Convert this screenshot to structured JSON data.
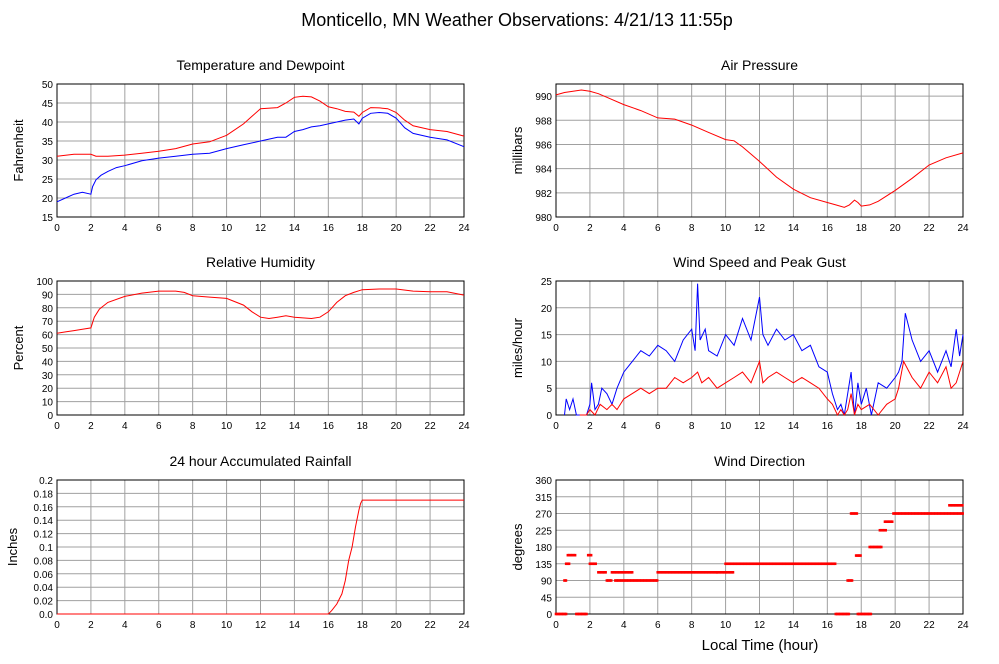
{
  "page_title": "Monticello, MN Weather Observations: 4/21/13 11:55p",
  "shared_x_label": "Local Time (hour)",
  "colors": {
    "red": "#ff0000",
    "blue": "#0000ff",
    "grid": "#a0a0a0",
    "axis": "#000000"
  },
  "chart_data": [
    {
      "id": "temp",
      "type": "line",
      "title": "Temperature and Dewpoint",
      "ylabel": "Fahrenheit",
      "xlabel": "",
      "xlim": [
        0,
        24
      ],
      "ylim": [
        15,
        50
      ],
      "xticks": [
        0,
        2,
        4,
        6,
        8,
        10,
        12,
        14,
        16,
        18,
        20,
        22,
        24
      ],
      "yticks": [
        15,
        20,
        25,
        30,
        35,
        40,
        45,
        50
      ],
      "grid": true,
      "series": [
        {
          "color": "#ff0000",
          "x": [
            0,
            1,
            2,
            2.3,
            3,
            4,
            5,
            6,
            7,
            8,
            9,
            10,
            11,
            11.5,
            12,
            13,
            13.5,
            14,
            14.5,
            15,
            15.5,
            16,
            16.5,
            17,
            17.5,
            17.8,
            18,
            18.5,
            19,
            19.5,
            20,
            20.5,
            21,
            22,
            23,
            24
          ],
          "y": [
            31,
            31.5,
            31.5,
            31,
            31,
            31.3,
            31.8,
            32.3,
            33,
            34.2,
            34.8,
            36.5,
            39.5,
            41.5,
            43.5,
            43.8,
            45,
            46.5,
            46.8,
            46.6,
            45.5,
            44,
            43.5,
            42.8,
            42.6,
            41.5,
            42.5,
            43.8,
            43.7,
            43.5,
            42.5,
            40.5,
            39,
            38,
            37.5,
            36.3
          ]
        },
        {
          "color": "#0000ff",
          "x": [
            0,
            0.5,
            1,
            1.5,
            2,
            2.1,
            2.3,
            2.6,
            3,
            3.5,
            4,
            5,
            6,
            7,
            8,
            9,
            10,
            11,
            12,
            12.5,
            13,
            13.5,
            14,
            14.5,
            15,
            15.5,
            16,
            16.5,
            17,
            17.5,
            17.8,
            18,
            18.5,
            19,
            19.5,
            20,
            20.5,
            21,
            22,
            23,
            24
          ],
          "y": [
            19,
            20,
            21,
            21.5,
            21,
            23,
            24.8,
            26,
            27,
            28,
            28.5,
            29.8,
            30.5,
            31,
            31.5,
            31.8,
            33,
            34,
            35,
            35.5,
            36,
            36,
            37.5,
            38,
            38.7,
            39,
            39.5,
            40,
            40.5,
            40.8,
            39.5,
            41,
            42.3,
            42.5,
            42.3,
            41,
            38.5,
            37,
            36,
            35.3,
            33.5
          ]
        }
      ]
    },
    {
      "id": "pressure",
      "type": "line",
      "title": "Air Pressure",
      "ylabel": "millibars",
      "xlabel": "",
      "xlim": [
        0,
        24
      ],
      "ylim": [
        980,
        991
      ],
      "xticks": [
        0,
        2,
        4,
        6,
        8,
        10,
        12,
        14,
        16,
        18,
        20,
        22,
        24
      ],
      "yticks": [
        980,
        982,
        984,
        986,
        988,
        990
      ],
      "grid": true,
      "series": [
        {
          "color": "#ff0000",
          "x": [
            0,
            0.5,
            1,
            1.5,
            2,
            2.5,
            3,
            4,
            5,
            6,
            7,
            8,
            9,
            10,
            10.5,
            11,
            12,
            13,
            14,
            15,
            16,
            16.5,
            17,
            17.3,
            17.6,
            17.8,
            18,
            18.5,
            19,
            20,
            21,
            22,
            23,
            24
          ],
          "y": [
            990.1,
            990.3,
            990.4,
            990.5,
            990.4,
            990.2,
            989.9,
            989.3,
            988.8,
            988.2,
            988.1,
            987.6,
            987.0,
            986.4,
            986.3,
            985.8,
            984.6,
            983.3,
            982.3,
            981.6,
            981.2,
            981.0,
            980.8,
            981.0,
            981.4,
            981.2,
            980.9,
            981.0,
            981.3,
            982.2,
            983.2,
            984.3,
            984.9,
            985.3
          ]
        }
      ]
    },
    {
      "id": "humidity",
      "type": "line",
      "title": "Relative Humidity",
      "ylabel": "Percent",
      "xlabel": "",
      "xlim": [
        0,
        24
      ],
      "ylim": [
        0,
        100
      ],
      "xticks": [
        0,
        2,
        4,
        6,
        8,
        10,
        12,
        14,
        16,
        18,
        20,
        22,
        24
      ],
      "yticks": [
        0,
        10,
        20,
        30,
        40,
        50,
        60,
        70,
        80,
        90,
        100
      ],
      "grid": true,
      "series": [
        {
          "color": "#ff0000",
          "x": [
            0,
            0.5,
            1,
            1.5,
            2,
            2.2,
            2.5,
            3,
            4,
            5,
            6,
            7,
            7.5,
            8,
            9,
            10,
            11,
            11.5,
            12,
            12.5,
            13,
            13.5,
            14,
            14.5,
            15,
            15.5,
            16,
            16.5,
            17,
            17.5,
            18,
            19,
            20,
            21,
            22,
            23,
            24
          ],
          "y": [
            61,
            62,
            63,
            64,
            65,
            73,
            79,
            84,
            88.5,
            91,
            92.5,
            92.5,
            91.5,
            89,
            88,
            87,
            82,
            77,
            73,
            72,
            73,
            74,
            73,
            72.5,
            72,
            73,
            77,
            84,
            89,
            91.5,
            93.5,
            94,
            94,
            92.5,
            92,
            92,
            89.5
          ]
        }
      ]
    },
    {
      "id": "wind",
      "type": "line",
      "title": "Wind Speed and Peak Gust",
      "ylabel": "miles/hour",
      "xlabel": "",
      "xlim": [
        0,
        24
      ],
      "ylim": [
        0,
        25
      ],
      "xticks": [
        0,
        2,
        4,
        6,
        8,
        10,
        12,
        14,
        16,
        18,
        20,
        22,
        24
      ],
      "yticks": [
        0,
        5,
        10,
        15,
        20,
        25
      ],
      "grid": true,
      "series": [
        {
          "color": "#0000ff",
          "x": [
            0.5,
            0.6,
            0.8,
            1.0,
            1.2,
            1.4,
            1.6,
            1.8,
            2.0,
            2.1,
            2.3,
            2.5,
            2.7,
            3,
            3.3,
            3.6,
            4,
            4.5,
            5,
            5.5,
            6,
            6.5,
            7,
            7.5,
            8,
            8.2,
            8.35,
            8.5,
            8.8,
            9,
            9.5,
            10,
            10.5,
            11,
            11.5,
            12,
            12.2,
            12.5,
            13,
            13.5,
            14,
            14.5,
            15,
            15.5,
            16,
            16.3,
            16.6,
            16.8,
            17,
            17.2,
            17.4,
            17.6,
            17.8,
            18,
            18.3,
            18.6,
            19,
            19.5,
            20,
            20.2,
            20.4,
            20.6,
            21,
            21.5,
            22,
            22.5,
            23,
            23.3,
            23.6,
            23.8,
            24
          ],
          "y": [
            0,
            3,
            1,
            3,
            0,
            0,
            0,
            0,
            2,
            6,
            1,
            2,
            5,
            4,
            2,
            5,
            8,
            10,
            12,
            11,
            13,
            12,
            10,
            14,
            16,
            12,
            24.5,
            14,
            16,
            12,
            11,
            15,
            13,
            18,
            14,
            22,
            15,
            13,
            16,
            14,
            15,
            12,
            13,
            9,
            8,
            4,
            1,
            2,
            0,
            4,
            8,
            0,
            6,
            2,
            5,
            0,
            6,
            5,
            7,
            8,
            10,
            19,
            14,
            10,
            12,
            8,
            12,
            9,
            16,
            11,
            15
          ]
        },
        {
          "color": "#ff0000",
          "x": [
            1.4,
            1.8,
            2.0,
            2.3,
            2.6,
            3,
            3.3,
            3.6,
            4,
            4.5,
            5,
            5.5,
            6,
            6.5,
            7,
            7.5,
            8,
            8.35,
            8.6,
            9,
            9.5,
            10,
            10.5,
            11,
            11.5,
            12,
            12.2,
            12.5,
            13,
            13.5,
            14,
            14.5,
            15,
            15.5,
            16,
            16.3,
            16.6,
            16.8,
            17,
            17.2,
            17.4,
            17.6,
            17.8,
            18,
            18.5,
            19,
            19.5,
            20,
            20.2,
            20.5,
            21,
            21.5,
            22,
            22.5,
            23,
            23.3,
            23.6,
            24
          ],
          "y": [
            0,
            0,
            1,
            0,
            2,
            1,
            2,
            1,
            3,
            4,
            5,
            4,
            5,
            5,
            7,
            6,
            7,
            8,
            6,
            7,
            5,
            6,
            7,
            8,
            6,
            10,
            6,
            7,
            8,
            7,
            6,
            7,
            6,
            5,
            3,
            2,
            0,
            1,
            0,
            1,
            4,
            0,
            2,
            1,
            2,
            0,
            2,
            3,
            5,
            10,
            7,
            5,
            8,
            6,
            9,
            5,
            6,
            10
          ]
        }
      ]
    },
    {
      "id": "rain",
      "type": "line",
      "title": "24 hour Accumulated Rainfall",
      "ylabel": "Inches",
      "xlabel": "",
      "xlim": [
        0,
        24
      ],
      "ylim": [
        0,
        0.2
      ],
      "xticks": [
        0,
        2,
        4,
        6,
        8,
        10,
        12,
        14,
        16,
        18,
        20,
        22,
        24
      ],
      "yticks": [
        "0.0",
        "0.02",
        "0.04",
        "0.06",
        "0.08",
        "0.1",
        "0.12",
        "0.14",
        "0.16",
        "0.18",
        "0.2"
      ],
      "grid": true,
      "series": [
        {
          "color": "#ff0000",
          "x": [
            0,
            16,
            16.2,
            16.5,
            16.8,
            17,
            17.2,
            17.4,
            17.6,
            17.8,
            17.9,
            18,
            24
          ],
          "y": [
            0,
            0,
            0.005,
            0.015,
            0.03,
            0.05,
            0.08,
            0.1,
            0.13,
            0.155,
            0.165,
            0.17,
            0.17
          ]
        }
      ]
    },
    {
      "id": "direction",
      "type": "scatter",
      "title": "Wind Direction",
      "ylabel": "degrees",
      "xlabel": "",
      "xlim": [
        0,
        24
      ],
      "ylim": [
        0,
        360
      ],
      "xticks": [
        0,
        2,
        4,
        6,
        8,
        10,
        12,
        14,
        16,
        18,
        20,
        22,
        24
      ],
      "yticks": [
        0,
        45,
        90,
        135,
        180,
        225,
        270,
        315,
        360
      ],
      "grid": true,
      "series": [
        {
          "color": "#ff0000",
          "segments": [
            [
              0.0,
              0.6,
              0
            ],
            [
              0.5,
              0.6,
              90
            ],
            [
              0.6,
              0.8,
              135
            ],
            [
              0.7,
              1.2,
              158
            ],
            [
              1.2,
              1.8,
              0
            ],
            [
              1.9,
              2.1,
              158
            ],
            [
              2.0,
              2.4,
              135
            ],
            [
              2.5,
              3.0,
              112
            ],
            [
              3.0,
              3.3,
              90
            ],
            [
              3.3,
              4.5,
              112
            ],
            [
              3.5,
              6.0,
              90
            ],
            [
              6.0,
              9.5,
              112
            ],
            [
              9.5,
              10.5,
              112
            ],
            [
              10.0,
              16.5,
              135
            ],
            [
              16.5,
              17.3,
              0
            ],
            [
              17.2,
              17.5,
              90
            ],
            [
              17.4,
              17.8,
              270
            ],
            [
              17.7,
              18.0,
              157
            ],
            [
              17.8,
              18.6,
              0
            ],
            [
              18.5,
              19.2,
              180
            ],
            [
              19.1,
              19.5,
              225
            ],
            [
              19.4,
              19.9,
              248
            ],
            [
              19.9,
              24.0,
              270
            ],
            [
              23.2,
              24.0,
              292
            ]
          ]
        }
      ]
    }
  ]
}
